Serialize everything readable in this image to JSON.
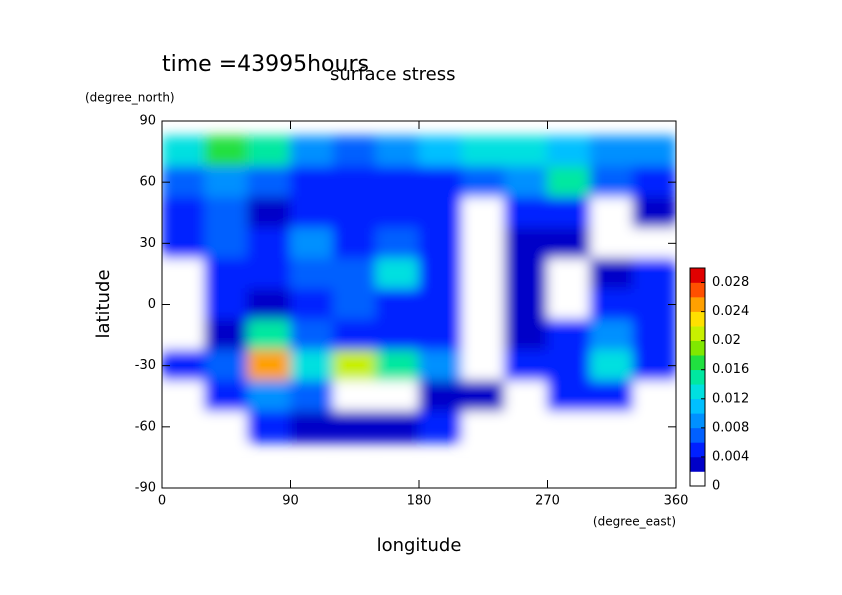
{
  "chart_data": {
    "type": "contour",
    "title": "surface stress",
    "annotation": "time =43995hours",
    "x_label": "longitude",
    "x_unit": "(degree_east)",
    "y_label": "latitude",
    "y_unit": "(degree_north)",
    "xlim": [
      0,
      360
    ],
    "xticks": [
      0,
      90,
      180,
      270,
      360
    ],
    "ylim": [
      -90,
      90
    ],
    "yticks": [
      -90,
      -60,
      -30,
      0,
      30,
      60,
      90
    ],
    "x": [
      15,
      45,
      75,
      105,
      135,
      165,
      195,
      225,
      255,
      285,
      315,
      345
    ],
    "y": [
      75,
      60,
      45,
      30,
      15,
      0,
      -15,
      -30,
      -45,
      -60
    ],
    "z": [
      [
        0.012,
        0.016,
        0.014,
        0.008,
        0.006,
        0.008,
        0.01,
        0.012,
        0.012,
        0.01,
        0.008,
        0.008
      ],
      [
        0.006,
        0.008,
        0.006,
        0.004,
        0.004,
        0.004,
        0.004,
        0.006,
        0.008,
        0.014,
        0.006,
        0.004
      ],
      [
        0.004,
        0.006,
        0.002,
        0.004,
        0.004,
        0.004,
        0.004,
        0,
        0.004,
        0.004,
        0,
        0.002
      ],
      [
        0.004,
        0.006,
        0.004,
        0.008,
        0.004,
        0.006,
        0.004,
        0,
        0.002,
        0.002,
        0,
        0
      ],
      [
        0,
        0.004,
        0.004,
        0.006,
        0.006,
        0.012,
        0.004,
        0,
        0.002,
        0,
        0.002,
        0.004
      ],
      [
        0,
        0.004,
        0.002,
        0.004,
        0.006,
        0.004,
        0.004,
        0,
        0.002,
        0,
        0.004,
        0.004
      ],
      [
        0,
        0.002,
        0.014,
        0.006,
        0.004,
        0.004,
        0.004,
        0,
        0.002,
        0.004,
        0.008,
        0.004
      ],
      [
        0.004,
        0.006,
        0.024,
        0.012,
        0.02,
        0.014,
        0.008,
        0,
        0.004,
        0.004,
        0.012,
        0.004
      ],
      [
        0,
        0.004,
        0.008,
        0.006,
        0,
        0,
        0.002,
        0.002,
        0,
        0.004,
        0.004,
        0
      ],
      [
        0,
        0,
        0.004,
        0.002,
        0.002,
        0.002,
        0.004,
        0,
        0,
        0,
        0,
        0
      ]
    ],
    "clim": [
      0,
      0.03
    ],
    "cticks": [
      0,
      0.004,
      0.008,
      0.012,
      0.016,
      0.02,
      0.024,
      0.028
    ],
    "colors": [
      "#ffffff",
      "#0000c8",
      "#0020ff",
      "#0060ff",
      "#0090ff",
      "#00c0ff",
      "#00e0e0",
      "#00e8a0",
      "#20e040",
      "#80e800",
      "#c8f000",
      "#ffe000",
      "#ffa000",
      "#ff5000",
      "#e00000"
    ]
  }
}
